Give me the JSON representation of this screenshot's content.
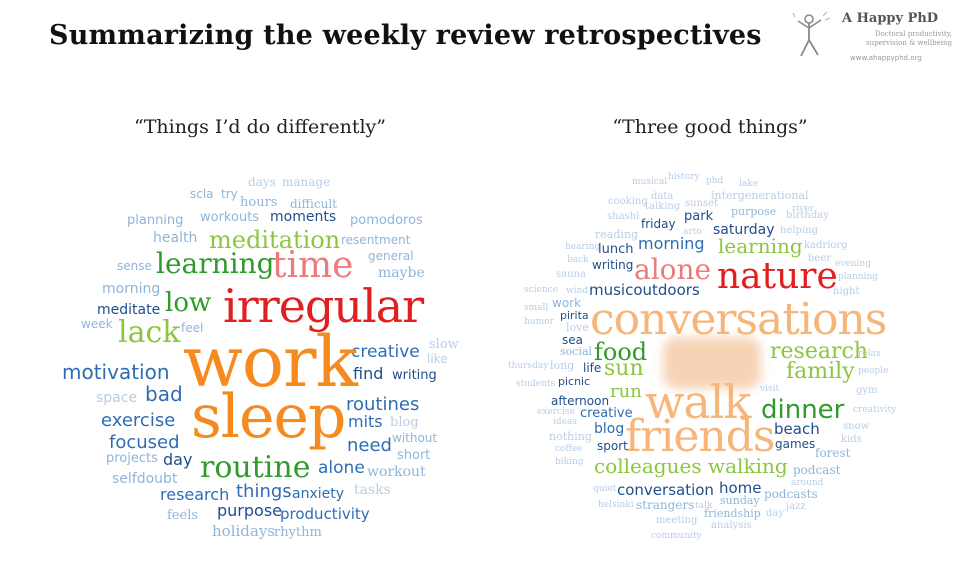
{
  "title": "Summarizing the weekly review retrospectives",
  "logo": {
    "name": "A Happy PhD",
    "tagline_line1": "Doctoral productivity,",
    "tagline_line2": "supervision & wellbeing",
    "url": "www.ahappyphd.org",
    "icon": "stick-figure-icon"
  },
  "colors": {
    "orange": "#f58a1f",
    "light_orange": "#f7b57a",
    "red": "#e02020",
    "pink": "#ee7b7b",
    "green": "#2f9b2a",
    "light_green": "#8cc63f",
    "dark_blue": "#1f4e8c",
    "blue": "#2e6db4",
    "light_blue": "#8fb5da",
    "pale_blue": "#b8cde6"
  },
  "left_cloud": {
    "heading": "“Things I’d do differently”",
    "words": [
      [
        "days",
        1,
        "pale_blue",
        248,
        176,
        12
      ],
      [
        "manage",
        1,
        "pale_blue",
        282,
        176,
        12
      ],
      [
        "scla",
        0,
        "light_blue",
        190,
        188,
        12
      ],
      [
        "try",
        0,
        "light_blue",
        221,
        188,
        12
      ],
      [
        "hours",
        1,
        "light_blue",
        240,
        196,
        13
      ],
      [
        "difficult",
        1,
        "light_blue",
        290,
        198,
        12
      ],
      [
        "planning",
        0,
        "light_blue",
        127,
        214,
        13
      ],
      [
        "workouts",
        0,
        "light_blue",
        200,
        211,
        13
      ],
      [
        "moments",
        0,
        "dark_blue",
        270,
        210,
        14
      ],
      [
        "pomodoros",
        0,
        "light_blue",
        350,
        214,
        13
      ],
      [
        "health",
        0,
        "light_blue",
        153,
        231,
        14
      ],
      [
        "meditation",
        1,
        "light_green",
        209,
        228,
        24
      ],
      [
        "resentment",
        0,
        "light_blue",
        341,
        234,
        12
      ],
      [
        "general",
        0,
        "light_blue",
        368,
        250,
        12
      ],
      [
        "sense",
        0,
        "light_blue",
        117,
        260,
        12
      ],
      [
        "learning",
        1,
        "green",
        156,
        250,
        28
      ],
      [
        "time",
        1,
        "pink",
        272,
        248,
        36
      ],
      [
        "maybe",
        1,
        "light_blue",
        378,
        266,
        14
      ],
      [
        "morning",
        0,
        "light_blue",
        102,
        282,
        14
      ],
      [
        "meditate",
        0,
        "dark_blue",
        97,
        303,
        14
      ],
      [
        "low",
        1,
        "green",
        165,
        290,
        26
      ],
      [
        "irregular",
        1,
        "red",
        223,
        283,
        46
      ],
      [
        "week",
        0,
        "light_blue",
        81,
        318,
        12
      ],
      [
        "lack",
        1,
        "light_green",
        118,
        318,
        30
      ],
      [
        "feel",
        0,
        "light_blue",
        181,
        322,
        12
      ],
      [
        "slow",
        1,
        "pale_blue",
        429,
        338,
        13
      ],
      [
        "creative",
        0,
        "blue",
        351,
        344,
        17
      ],
      [
        "like",
        0,
        "pale_blue",
        427,
        353,
        12
      ],
      [
        "motivation",
        0,
        "blue",
        62,
        362,
        20
      ],
      [
        "work",
        1,
        "orange",
        183,
        327,
        70
      ],
      [
        "find",
        0,
        "dark_blue",
        353,
        366,
        16
      ],
      [
        "writing",
        0,
        "dark_blue",
        392,
        369,
        13
      ],
      [
        "space",
        0,
        "pale_blue",
        96,
        391,
        14
      ],
      [
        "bad",
        0,
        "blue",
        145,
        384,
        20
      ],
      [
        "routines",
        0,
        "blue",
        346,
        396,
        18
      ],
      [
        "sleep",
        1,
        "orange",
        191,
        387,
        60
      ],
      [
        "exercise",
        0,
        "blue",
        101,
        412,
        18
      ],
      [
        "mits",
        0,
        "blue",
        348,
        414,
        16
      ],
      [
        "blog",
        1,
        "pale_blue",
        390,
        416,
        13
      ],
      [
        "focused",
        0,
        "blue",
        109,
        434,
        18
      ],
      [
        "need",
        0,
        "blue",
        347,
        437,
        18
      ],
      [
        "without",
        0,
        "light_blue",
        392,
        432,
        12
      ],
      [
        "projects",
        0,
        "light_blue",
        106,
        452,
        13
      ],
      [
        "day",
        0,
        "dark_blue",
        163,
        452,
        16
      ],
      [
        "short",
        0,
        "light_blue",
        397,
        449,
        13
      ],
      [
        "routine",
        1,
        "green",
        200,
        453,
        30
      ],
      [
        "alone",
        0,
        "blue",
        318,
        460,
        17
      ],
      [
        "workout",
        1,
        "light_blue",
        367,
        465,
        14
      ],
      [
        "selfdoubt",
        0,
        "light_blue",
        112,
        472,
        14
      ],
      [
        "tasks",
        1,
        "pale_blue",
        354,
        483,
        14
      ],
      [
        "research",
        0,
        "blue",
        160,
        487,
        16
      ],
      [
        "things",
        0,
        "blue",
        236,
        483,
        18
      ],
      [
        "anxiety",
        0,
        "blue",
        292,
        487,
        14
      ],
      [
        "purpose",
        0,
        "dark_blue",
        217,
        503,
        16
      ],
      [
        "productivity",
        0,
        "blue",
        280,
        507,
        15
      ],
      [
        "feels",
        1,
        "light_blue",
        167,
        509,
        13
      ],
      [
        "holidays",
        1,
        "light_blue",
        212,
        524,
        15
      ],
      [
        "rhythm",
        1,
        "light_blue",
        274,
        526,
        13
      ]
    ]
  },
  "right_cloud": {
    "heading": "“Three good things”",
    "words": [
      [
        "musical",
        1,
        "pale_blue",
        632,
        178,
        9
      ],
      [
        "history",
        1,
        "pale_blue",
        668,
        173,
        9
      ],
      [
        "phd",
        1,
        "pale_blue",
        706,
        177,
        9
      ],
      [
        "lake",
        1,
        "pale_blue",
        739,
        180,
        9
      ],
      [
        "cooking",
        1,
        "pale_blue",
        608,
        197,
        10
      ],
      [
        "data",
        1,
        "pale_blue",
        651,
        192,
        10
      ],
      [
        "talking",
        1,
        "pale_blue",
        645,
        202,
        10
      ],
      [
        "sunset",
        1,
        "pale_blue",
        685,
        199,
        10
      ],
      [
        "intergenerational",
        1,
        "pale_blue",
        711,
        190,
        11
      ],
      [
        "river",
        1,
        "pale_blue",
        792,
        205,
        9
      ],
      [
        "shashi",
        1,
        "pale_blue",
        607,
        212,
        10
      ],
      [
        "friday",
        0,
        "dark_blue",
        641,
        218,
        12
      ],
      [
        "park",
        0,
        "dark_blue",
        684,
        210,
        13
      ],
      [
        "purpose",
        1,
        "light_blue",
        731,
        206,
        11
      ],
      [
        "birthday",
        1,
        "pale_blue",
        786,
        211,
        10
      ],
      [
        "reading",
        1,
        "pale_blue",
        595,
        229,
        11
      ],
      [
        "arto",
        1,
        "pale_blue",
        683,
        228,
        9
      ],
      [
        "saturday",
        0,
        "dark_blue",
        713,
        223,
        14
      ],
      [
        "helping",
        1,
        "pale_blue",
        780,
        226,
        10
      ],
      [
        "hearing",
        1,
        "pale_blue",
        565,
        243,
        9
      ],
      [
        "lunch",
        0,
        "dark_blue",
        598,
        243,
        13
      ],
      [
        "morning",
        0,
        "blue",
        638,
        236,
        16
      ],
      [
        "learning",
        1,
        "light_green",
        718,
        236,
        20
      ],
      [
        "kadriorg",
        1,
        "pale_blue",
        804,
        241,
        10
      ],
      [
        "back",
        1,
        "pale_blue",
        567,
        256,
        9
      ],
      [
        "writing",
        0,
        "dark_blue",
        592,
        259,
        12
      ],
      [
        "beer",
        1,
        "pale_blue",
        808,
        254,
        10
      ],
      [
        "evening",
        1,
        "pale_blue",
        835,
        260,
        9
      ],
      [
        "sauna",
        1,
        "pale_blue",
        556,
        270,
        10
      ],
      [
        "alone",
        1,
        "pink",
        634,
        256,
        28
      ],
      [
        "nature",
        1,
        "red",
        717,
        259,
        36
      ],
      [
        "planning",
        1,
        "pale_blue",
        838,
        273,
        9
      ],
      [
        "science",
        1,
        "pale_blue",
        524,
        286,
        9
      ],
      [
        "wind",
        1,
        "pale_blue",
        566,
        287,
        9
      ],
      [
        "musicoutdoors",
        0,
        "dark_blue",
        589,
        283,
        15
      ],
      [
        "night",
        1,
        "pale_blue",
        833,
        287,
        10
      ],
      [
        "work",
        0,
        "light_blue",
        552,
        297,
        12
      ],
      [
        "small",
        1,
        "pale_blue",
        524,
        304,
        9
      ],
      [
        "pirita",
        0,
        "dark_blue",
        560,
        310,
        11
      ],
      [
        "conversations",
        1,
        "light_orange",
        590,
        298,
        44
      ],
      [
        "humor",
        1,
        "pale_blue",
        524,
        318,
        9
      ],
      [
        "love",
        1,
        "pale_blue",
        566,
        322,
        11
      ],
      [
        "sea",
        0,
        "dark_blue",
        562,
        334,
        12
      ],
      [
        "social",
        1,
        "light_blue",
        560,
        346,
        11
      ],
      [
        "food",
        1,
        "green",
        594,
        340,
        24
      ],
      [
        "research",
        1,
        "light_green",
        770,
        341,
        22
      ],
      [
        "relax",
        1,
        "pale_blue",
        858,
        350,
        9
      ],
      [
        "thursday",
        1,
        "pale_blue",
        508,
        362,
        9
      ],
      [
        "long",
        1,
        "pale_blue",
        550,
        360,
        11
      ],
      [
        "life",
        0,
        "dark_blue",
        583,
        362,
        12
      ],
      [
        "sun",
        1,
        "light_green",
        604,
        358,
        22
      ],
      [
        "family",
        1,
        "light_green",
        786,
        361,
        22
      ],
      [
        "people",
        1,
        "pale_blue",
        858,
        367,
        9
      ],
      [
        "students",
        1,
        "pale_blue",
        516,
        380,
        9
      ],
      [
        "picnic",
        0,
        "dark_blue",
        558,
        376,
        11
      ],
      [
        "run",
        1,
        "light_green",
        610,
        383,
        18
      ],
      [
        "visit",
        1,
        "pale_blue",
        760,
        385,
        9
      ],
      [
        "gym",
        1,
        "pale_blue",
        856,
        386,
        10
      ],
      [
        "afternoon",
        0,
        "dark_blue",
        551,
        395,
        12
      ],
      [
        "walk",
        1,
        "light_orange",
        645,
        379,
        46
      ],
      [
        "exercise",
        1,
        "pale_blue",
        537,
        408,
        9
      ],
      [
        "creative",
        0,
        "blue",
        580,
        407,
        13
      ],
      [
        "dinner",
        0,
        "green",
        761,
        397,
        26
      ],
      [
        "creativity",
        1,
        "pale_blue",
        853,
        406,
        9
      ],
      [
        "ideas",
        1,
        "pale_blue",
        553,
        418,
        9
      ],
      [
        "blog",
        0,
        "blue",
        594,
        422,
        14
      ],
      [
        "friends",
        1,
        "light_orange",
        625,
        415,
        44
      ],
      [
        "beach",
        0,
        "dark_blue",
        774,
        422,
        15
      ],
      [
        "snow",
        1,
        "pale_blue",
        843,
        422,
        10
      ],
      [
        "nothing",
        1,
        "pale_blue",
        549,
        431,
        11
      ],
      [
        "sport",
        0,
        "dark_blue",
        597,
        440,
        12
      ],
      [
        "games",
        0,
        "dark_blue",
        775,
        438,
        12
      ],
      [
        "kids",
        1,
        "pale_blue",
        841,
        435,
        10
      ],
      [
        "coffee",
        1,
        "pale_blue",
        555,
        445,
        9
      ],
      [
        "forest",
        1,
        "light_blue",
        815,
        447,
        12
      ],
      [
        "biking",
        1,
        "pale_blue",
        555,
        458,
        9
      ],
      [
        "colleagues",
        1,
        "light_green",
        594,
        456,
        20
      ],
      [
        "walking",
        1,
        "light_green",
        708,
        456,
        20
      ],
      [
        "podcast",
        1,
        "light_blue",
        793,
        464,
        12
      ],
      [
        "around",
        1,
        "pale_blue",
        791,
        479,
        9
      ],
      [
        "quiet",
        1,
        "pale_blue",
        593,
        485,
        9
      ],
      [
        "conversation",
        0,
        "dark_blue",
        617,
        483,
        15
      ],
      [
        "home",
        0,
        "dark_blue",
        719,
        481,
        15
      ],
      [
        "podcasts",
        1,
        "light_blue",
        764,
        488,
        12
      ],
      [
        "sunday",
        1,
        "light_blue",
        720,
        495,
        11
      ],
      [
        "jazz",
        1,
        "pale_blue",
        786,
        502,
        10
      ],
      [
        "helsinki",
        1,
        "pale_blue",
        598,
        501,
        9
      ],
      [
        "strangers",
        1,
        "light_blue",
        636,
        499,
        12
      ],
      [
        "talk",
        1,
        "pale_blue",
        695,
        502,
        9
      ],
      [
        "friendship",
        1,
        "light_blue",
        704,
        508,
        11
      ],
      [
        "day",
        1,
        "pale_blue",
        766,
        509,
        10
      ],
      [
        "meeting",
        1,
        "pale_blue",
        656,
        516,
        10
      ],
      [
        "analysis",
        1,
        "pale_blue",
        711,
        521,
        10
      ],
      [
        "community",
        1,
        "pale_blue",
        651,
        532,
        9
      ]
    ]
  }
}
